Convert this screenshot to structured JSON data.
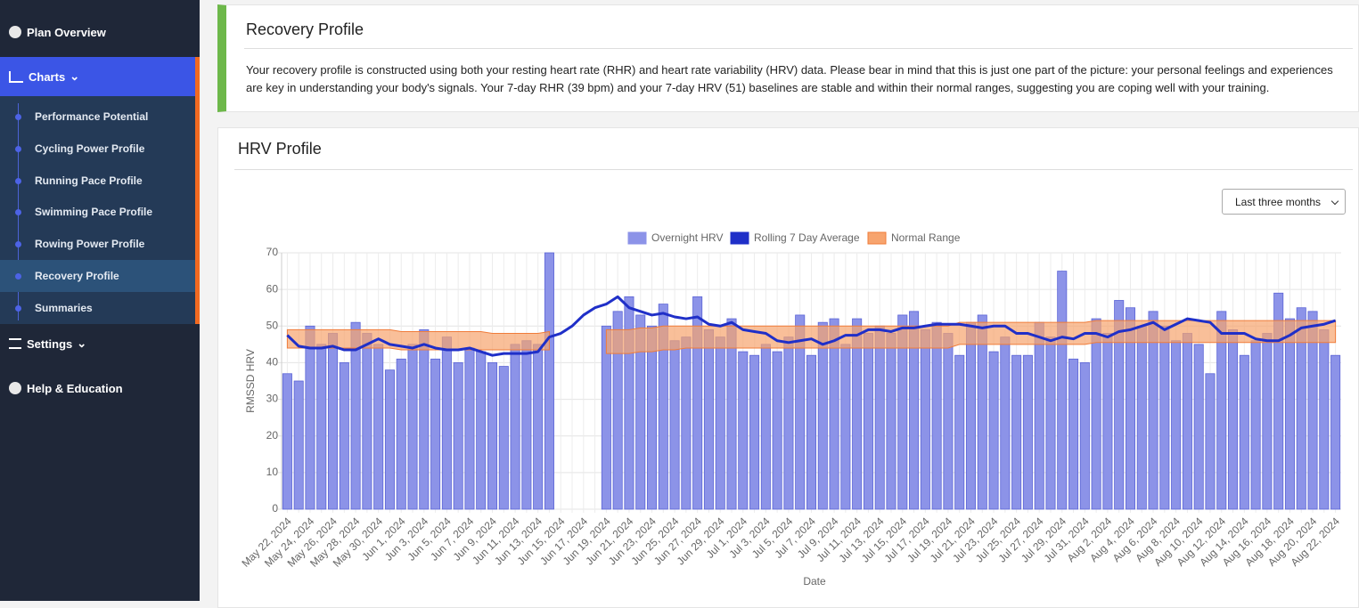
{
  "sidebar": {
    "plan_overview": "Plan Overview",
    "charts": "Charts",
    "submenu": [
      "Performance Potential",
      "Cycling Power Profile",
      "Running Pace Profile",
      "Swimming Pace Profile",
      "Rowing Power Profile",
      "Recovery Profile",
      "Summaries"
    ],
    "settings": "Settings",
    "help": "Help & Education"
  },
  "recovery": {
    "title": "Recovery Profile",
    "text": "Your recovery profile is constructed using both your resting heart rate (RHR) and heart rate variability (HRV) data. Please bear in mind that this is just one part of the picture: your personal feelings and experiences are key in understanding your body's signals. Your 7-day RHR (39 bpm) and your 7-day HRV (51) baselines are stable and within their normal ranges, suggesting you are coping well with your training."
  },
  "controls": {
    "range_select": "Last three months"
  },
  "chart_data": {
    "type": "bar",
    "title": "HRV Profile",
    "x_label": "Date",
    "y_label": "RMSSD HRV",
    "ylim": [
      0,
      70
    ],
    "yticks": [
      0,
      10,
      20,
      30,
      40,
      50,
      60,
      70
    ],
    "grid": true,
    "legend": "top",
    "categories": [
      "May 22, 2024",
      null,
      "May 24, 2024",
      null,
      "May 26, 2024",
      null,
      "May 28, 2024",
      null,
      "May 30, 2024",
      null,
      "Jun 1, 2024",
      null,
      "Jun 3, 2024",
      null,
      "Jun 5, 2024",
      null,
      "Jun 7, 2024",
      null,
      "Jun 9, 2024",
      null,
      "Jun 11, 2024",
      null,
      "Jun 13, 2024",
      null,
      "Jun 15, 2024",
      null,
      "Jun 17, 2024",
      null,
      "Jun 19, 2024",
      null,
      "Jun 21, 2024",
      null,
      "Jun 23, 2024",
      null,
      "Jun 25, 2024",
      null,
      "Jun 27, 2024",
      null,
      "Jun 29, 2024",
      null,
      "Jul 1, 2024",
      null,
      "Jul 3, 2024",
      null,
      "Jul 5, 2024",
      null,
      "Jul 7, 2024",
      null,
      "Jul 9, 2024",
      null,
      "Jul 11, 2024",
      null,
      "Jul 13, 2024",
      null,
      "Jul 15, 2024",
      null,
      "Jul 17, 2024",
      null,
      "Jul 19, 2024",
      null,
      "Jul 21, 2024",
      null,
      "Jul 23, 2024",
      null,
      "Jul 25, 2024",
      null,
      "Jul 27, 2024",
      null,
      "Jul 29, 2024",
      null,
      "Jul 31, 2024",
      null,
      "Aug 2, 2024",
      null,
      "Aug 4, 2024",
      null,
      "Aug 6, 2024",
      null,
      "Aug 8, 2024",
      null,
      "Aug 10, 2024",
      null,
      "Aug 12, 2024",
      null,
      "Aug 14, 2024",
      null,
      "Aug 16, 2024",
      null,
      "Aug 18, 2024",
      null,
      "Aug 20, 2024",
      null,
      "Aug 22, 2024"
    ],
    "series": [
      {
        "name": "Overnight HRV",
        "type": "bar",
        "color": "#8c93e8",
        "values": [
          37,
          35,
          50,
          45,
          48,
          40,
          51,
          48,
          45,
          38,
          41,
          45,
          49,
          41,
          47,
          40,
          44,
          43,
          40,
          39,
          45,
          46,
          45,
          70,
          null,
          null,
          null,
          null,
          50,
          54,
          58,
          53,
          50,
          56,
          46,
          47,
          58,
          49,
          47,
          52,
          43,
          42,
          45,
          43,
          47,
          53,
          42,
          51,
          52,
          45,
          52,
          48,
          50,
          48,
          53,
          54,
          49,
          51,
          48,
          42,
          51,
          53,
          43,
          47,
          42,
          42,
          51,
          47,
          65,
          41,
          40,
          52,
          48,
          57,
          55,
          50,
          54,
          50,
          46,
          48,
          45,
          37,
          54,
          49,
          42,
          46,
          48,
          59,
          52,
          55,
          54,
          49,
          42
        ]
      },
      {
        "name": "Rolling 7 Day Average",
        "type": "line",
        "color": "#1f2fc8",
        "values": [
          47.5,
          44.5,
          44,
          44,
          44.5,
          43.5,
          43.5,
          45,
          46.5,
          45,
          44.5,
          44,
          45,
          44,
          43.5,
          43.5,
          44,
          43,
          42,
          42.5,
          42.5,
          42.5,
          43,
          47,
          48,
          50,
          53,
          55,
          56,
          58,
          55,
          54,
          53,
          53.5,
          52.5,
          52,
          52.5,
          50.5,
          50,
          51,
          49,
          48.5,
          48,
          46,
          45.5,
          46,
          46.5,
          45,
          46,
          47.5,
          47.5,
          49,
          49,
          48.5,
          49.5,
          49.5,
          50,
          50.5,
          50.5,
          50.5,
          50,
          49.5,
          50,
          50,
          48,
          48,
          47,
          46,
          47,
          46.5,
          48,
          48,
          47,
          48.5,
          49,
          50,
          51,
          49,
          50.5,
          52,
          51.5,
          51,
          48,
          48,
          48,
          46.5,
          46,
          46,
          47.5,
          49.5,
          50,
          50.5,
          51.5
        ]
      },
      {
        "name": "Normal Range",
        "type": "range",
        "color": "#f7a46e",
        "lower": [
          44,
          44,
          44,
          44,
          44,
          44,
          44,
          44,
          44,
          44,
          43.5,
          43.5,
          43.5,
          43.5,
          43.5,
          43.5,
          43.5,
          43.5,
          43.5,
          43.5,
          43.5,
          43.5,
          43.5,
          43.5,
          null,
          null,
          null,
          null,
          42.5,
          42.5,
          42.5,
          43,
          43,
          43.5,
          43.5,
          44,
          44,
          44,
          44,
          44,
          44,
          44,
          44,
          44,
          44,
          44,
          44,
          44,
          44,
          44,
          44,
          44,
          44,
          44,
          44,
          44,
          44,
          44,
          44,
          45,
          45,
          45,
          45,
          45,
          45,
          45,
          45,
          45,
          45,
          45,
          45,
          45.5,
          45.5,
          45.5,
          45.5,
          45.5,
          45.5,
          45.5,
          45.5,
          45.5,
          45.5,
          45.5,
          45.5,
          45.5,
          45.5,
          45.5,
          45.5,
          45.5,
          45.5,
          45.5,
          45.5,
          45.5,
          45.5
        ],
        "upper": [
          49,
          49,
          49,
          49,
          49,
          49,
          49,
          49,
          49,
          49,
          48.5,
          48.5,
          48.5,
          48.5,
          48.5,
          48.5,
          48.5,
          48.5,
          48,
          48,
          48,
          48,
          48,
          48.5,
          null,
          null,
          null,
          null,
          49,
          49,
          49,
          49.5,
          49.5,
          50,
          50,
          50,
          50,
          50,
          50,
          50,
          50,
          50,
          50,
          50,
          50,
          50,
          50,
          50,
          50,
          50,
          50,
          50,
          50,
          50,
          50,
          50,
          50,
          50,
          50,
          51,
          51,
          51,
          51,
          51,
          51,
          51,
          51,
          51,
          51,
          51,
          51,
          51.5,
          51.5,
          51.5,
          51.5,
          51.5,
          51.5,
          51.5,
          51.5,
          51.5,
          51.5,
          51.5,
          51.5,
          51.5,
          51.5,
          51.5,
          51.5,
          51.5,
          51.5,
          51.5,
          51.5,
          51.5,
          51.5
        ]
      }
    ]
  }
}
